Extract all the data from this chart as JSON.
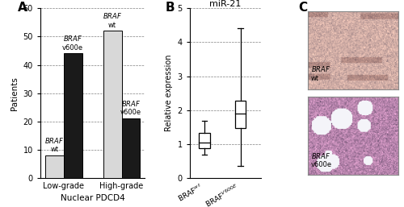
{
  "panel_A": {
    "title": "A",
    "categories": [
      "Low-grade",
      "High-grade"
    ],
    "braf_wt": [
      8,
      52
    ],
    "braf_v600e": [
      44,
      21
    ],
    "ylabel": "Patients",
    "xlabel": "Nuclear PDCD4",
    "ylim": [
      0,
      60
    ],
    "yticks": [
      0,
      10,
      20,
      30,
      40,
      50,
      60
    ],
    "wt_color": "#d8d8d8",
    "v600e_color": "#1a1a1a"
  },
  "panel_B": {
    "title": "B",
    "panel_title": "miR-21",
    "ylabel": "Relative expression",
    "ylim": [
      0,
      5
    ],
    "yticks": [
      0,
      1,
      2,
      3,
      4,
      5
    ],
    "braf_wt": {
      "whisker_low": 0.68,
      "q1": 0.88,
      "median": 1.05,
      "q3": 1.32,
      "whisker_high": 1.68
    },
    "braf_v600e": {
      "whisker_low": 0.35,
      "q1": 1.48,
      "median": 1.9,
      "q3": 2.28,
      "whisker_high": 4.42
    },
    "xtick_labels": [
      "BRAF$^{wt}$",
      "BRAF$^{V600E}$"
    ],
    "box_color": "#ffffff",
    "box_edge_color": "#000000"
  },
  "panel_C": {
    "title": "C",
    "top_label_line1": "BRAF",
    "top_label_line2": "wt",
    "bot_label_line1": "BRAF",
    "bot_label_line2": "v600e",
    "top_bg_color": "#d8a898",
    "bot_bg_color": "#c090b8"
  }
}
